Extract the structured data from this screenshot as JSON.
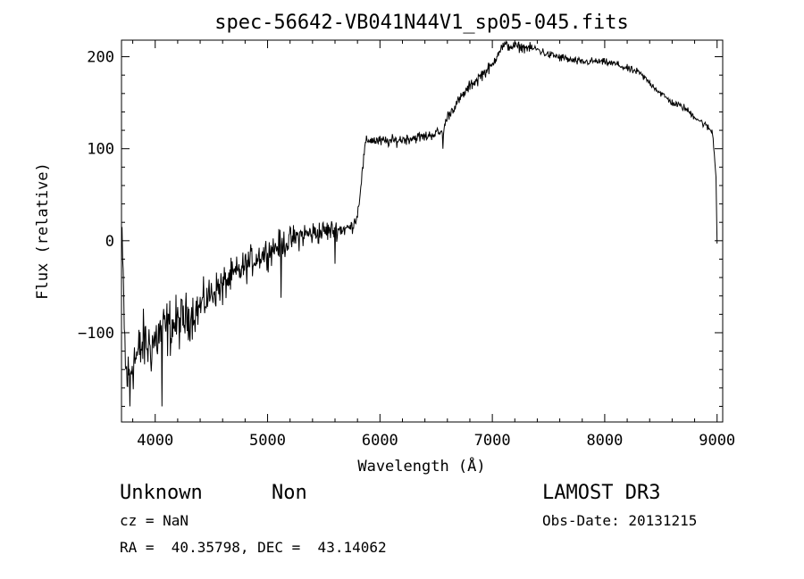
{
  "chart_data": {
    "type": "line",
    "title": "spec-56642-VB041N44V1_sp05-045.fits",
    "xlabel": "Wavelength (Å)",
    "ylabel": "Flux (relative)",
    "xlim": [
      3700,
      9050
    ],
    "ylim": [
      -197,
      218
    ],
    "xticks": [
      4000,
      5000,
      6000,
      7000,
      8000,
      9000
    ],
    "xtick_labels": [
      "4000",
      "5000",
      "6000",
      "7000",
      "8000",
      "9000"
    ],
    "yticks": [
      -100,
      0,
      100,
      200
    ],
    "ytick_labels": [
      "−100",
      "0",
      "100",
      "200"
    ],
    "grid": false,
    "series": [
      {
        "name": "spectrum",
        "color": "#000000",
        "anchors": [
          [
            3700,
            0
          ],
          [
            3720,
            -60
          ],
          [
            3735,
            -140
          ],
          [
            3760,
            -150
          ],
          [
            3800,
            -130
          ],
          [
            3850,
            -125
          ],
          [
            3900,
            -110
          ],
          [
            3950,
            -115
          ],
          [
            4000,
            -108
          ],
          [
            4050,
            -100
          ],
          [
            4100,
            -96
          ],
          [
            4150,
            -92
          ],
          [
            4200,
            -90
          ],
          [
            4300,
            -82
          ],
          [
            4400,
            -72
          ],
          [
            4500,
            -57
          ],
          [
            4600,
            -47
          ],
          [
            4700,
            -38
          ],
          [
            4800,
            -28
          ],
          [
            4900,
            -18
          ],
          [
            5000,
            -12
          ],
          [
            5100,
            -5
          ],
          [
            5200,
            0
          ],
          [
            5300,
            6
          ],
          [
            5400,
            8
          ],
          [
            5500,
            10
          ],
          [
            5600,
            12
          ],
          [
            5700,
            13
          ],
          [
            5750,
            15
          ],
          [
            5800,
            28
          ],
          [
            5830,
            60
          ],
          [
            5870,
            105
          ],
          [
            5900,
            110
          ],
          [
            6000,
            108
          ],
          [
            6100,
            108
          ],
          [
            6200,
            110
          ],
          [
            6300,
            112
          ],
          [
            6400,
            113
          ],
          [
            6500,
            117
          ],
          [
            6560,
            118
          ],
          [
            6600,
            135
          ],
          [
            6700,
            152
          ],
          [
            6800,
            168
          ],
          [
            6900,
            180
          ],
          [
            7000,
            190
          ],
          [
            7050,
            205
          ],
          [
            7100,
            212
          ],
          [
            7200,
            211
          ],
          [
            7300,
            210
          ],
          [
            7400,
            208
          ],
          [
            7500,
            202
          ],
          [
            7600,
            200
          ],
          [
            7700,
            196
          ],
          [
            7800,
            194
          ],
          [
            7900,
            195
          ],
          [
            8000,
            194
          ],
          [
            8100,
            192
          ],
          [
            8200,
            187
          ],
          [
            8300,
            183
          ],
          [
            8400,
            172
          ],
          [
            8500,
            160
          ],
          [
            8600,
            150
          ],
          [
            8700,
            145
          ],
          [
            8800,
            135
          ],
          [
            8900,
            125
          ],
          [
            8960,
            118
          ],
          [
            8990,
            70
          ],
          [
            9000,
            0
          ]
        ],
        "noise_anchors": [
          [
            3700,
            22
          ],
          [
            4100,
            20
          ],
          [
            4500,
            12
          ],
          [
            5000,
            10
          ],
          [
            5500,
            8
          ],
          [
            5800,
            4
          ],
          [
            6000,
            4
          ],
          [
            6600,
            3.5
          ],
          [
            7000,
            4
          ],
          [
            7400,
            3
          ],
          [
            8000,
            2.5
          ],
          [
            9000,
            2.5
          ]
        ],
        "dips": [
          [
            4060,
            -180
          ],
          [
            3775,
            -180
          ],
          [
            4600,
            -70
          ],
          [
            5120,
            -62
          ],
          [
            5600,
            -25
          ],
          [
            6560,
            100
          ],
          [
            6870,
            168
          ],
          [
            7600,
            195
          ]
        ],
        "step": 5
      }
    ]
  },
  "info": {
    "object_class": "Unknown",
    "object_subclass": "Non",
    "redshift": "cz = NaN",
    "coords": "RA =  40.35798, DEC =  43.14062",
    "survey": "LAMOST DR3",
    "obs_date": "Obs-Date: 20131215"
  }
}
